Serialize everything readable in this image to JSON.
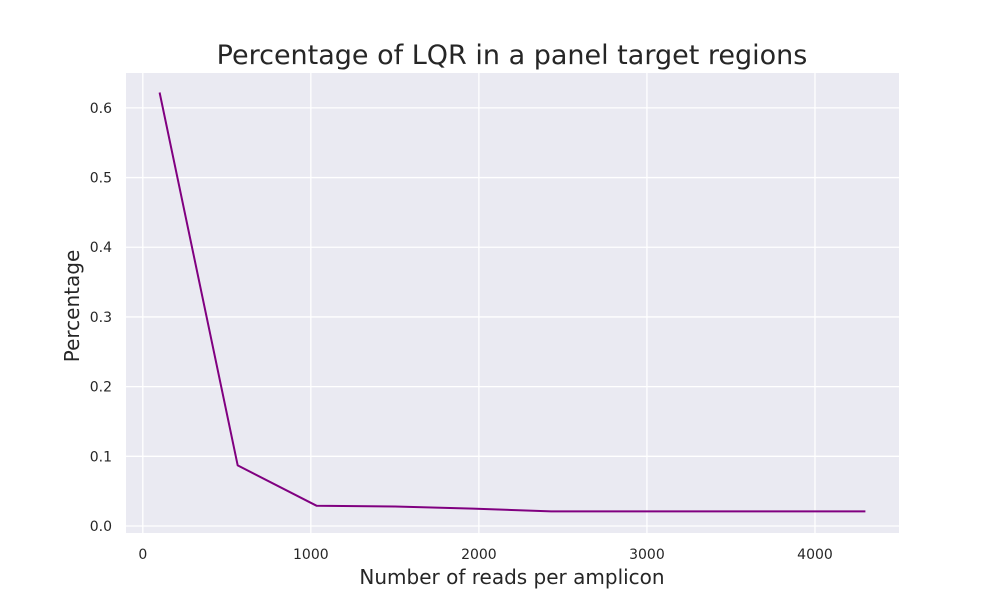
{
  "chart_data": {
    "type": "line",
    "title": "Percentage of LQR in a panel target regions",
    "xlabel": "Number of reads per amplicon",
    "ylabel": "Percentage",
    "xlim": [
      -100,
      4500
    ],
    "ylim": [
      -0.01,
      0.65
    ],
    "xticks": [
      0,
      1000,
      2000,
      3000,
      4000
    ],
    "yticks": [
      0.0,
      0.1,
      0.2,
      0.3,
      0.4,
      0.5,
      0.6
    ],
    "xtick_labels": [
      "0",
      "1000",
      "2000",
      "3000",
      "4000"
    ],
    "ytick_labels": [
      "0.0",
      "0.1",
      "0.2",
      "0.3",
      "0.4",
      "0.5",
      "0.6"
    ],
    "grid": true,
    "series": [
      {
        "color": "#800080",
        "x": [
          100,
          565,
          1035,
          1500,
          1965,
          2430,
          2900,
          3365,
          3830,
          4300
        ],
        "y": [
          0.622,
          0.087,
          0.029,
          0.028,
          0.025,
          0.021,
          0.021,
          0.021,
          0.021,
          0.021
        ]
      }
    ]
  },
  "style": {
    "plot_background": "#eaeaf2",
    "grid_color": "#ffffff",
    "text_color": "#262626"
  }
}
